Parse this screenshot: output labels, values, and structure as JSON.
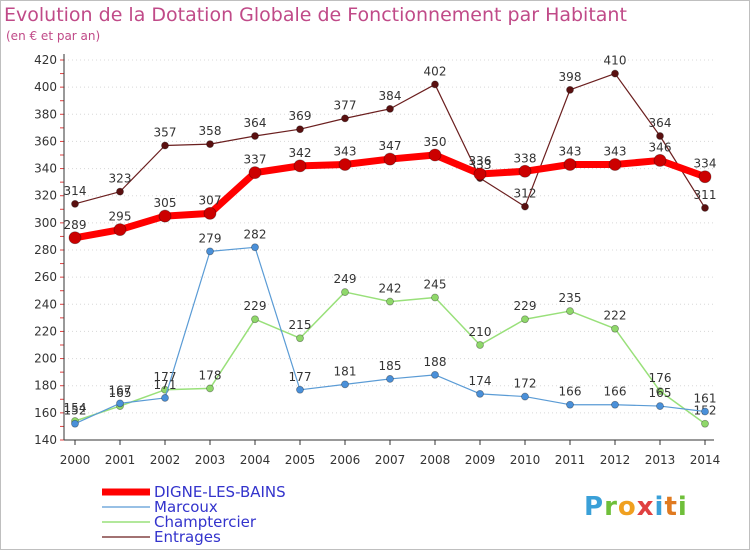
{
  "title": "Evolution de la Dotation Globale de Fonctionnement par Habitant",
  "subtitle": "(en € et par an)",
  "logo": {
    "p": "P",
    "r": "r",
    "o": "o",
    "x": "x",
    "i": "i",
    "t": "t",
    "i2": "i"
  },
  "chart_data": {
    "type": "line",
    "x": [
      "2000",
      "2001",
      "2002",
      "2003",
      "2004",
      "2005",
      "2006",
      "2007",
      "2008",
      "2009",
      "2010",
      "2011",
      "2012",
      "2013",
      "2014"
    ],
    "ylim": [
      140,
      420
    ],
    "yticks": [
      140,
      160,
      180,
      200,
      220,
      240,
      260,
      280,
      300,
      320,
      340,
      360,
      380,
      400,
      420
    ],
    "grid": "horizontal dotted",
    "legend_position": "bottom-left",
    "series": [
      {
        "name": "Entrages",
        "color": "#6b1f1f",
        "values": [
          314,
          323,
          357,
          358,
          364,
          369,
          377,
          384,
          402,
          333,
          312,
          398,
          410,
          364,
          311
        ]
      },
      {
        "name": "Champtercier",
        "color": "#99e07a",
        "values": [
          154,
          165,
          177,
          178,
          229,
          215,
          249,
          242,
          245,
          210,
          229,
          235,
          222,
          176,
          152
        ]
      },
      {
        "name": "Marcoux",
        "color": "#5a9bd5",
        "values": [
          152,
          167,
          171,
          279,
          282,
          177,
          181,
          185,
          188,
          174,
          172,
          166,
          166,
          165,
          161
        ]
      },
      {
        "name": "DIGNE-LES-BAINS",
        "color": "#ff0000",
        "values": [
          289,
          295,
          305,
          307,
          337,
          342,
          343,
          347,
          350,
          336,
          338,
          343,
          343,
          346,
          334
        ]
      }
    ]
  }
}
